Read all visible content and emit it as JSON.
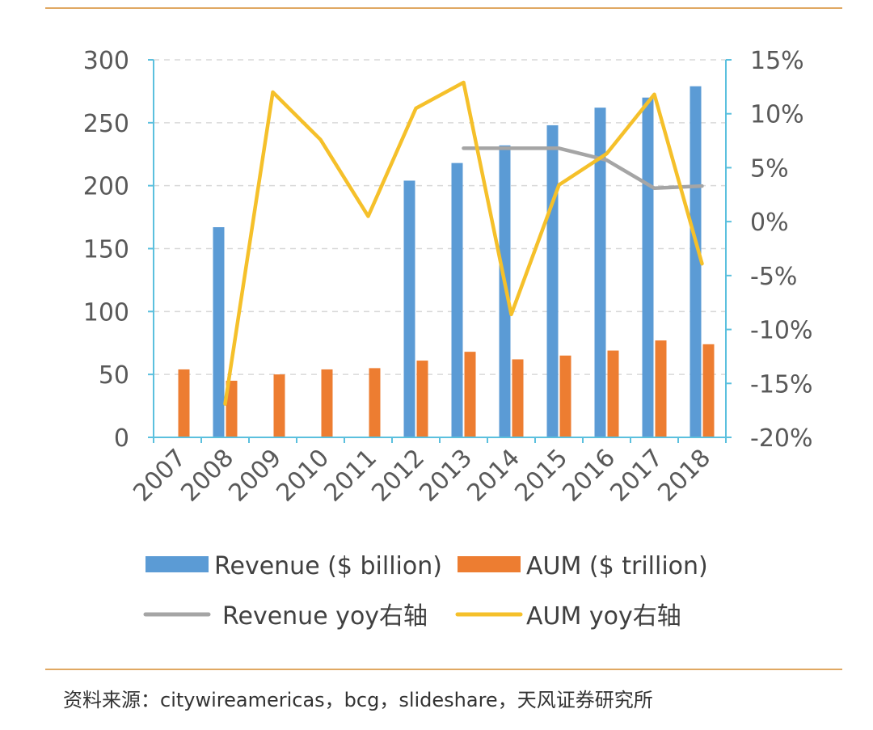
{
  "chart_data": {
    "type": "bar",
    "categories": [
      "2007",
      "2008",
      "2009",
      "2010",
      "2011",
      "2012",
      "2013",
      "2014",
      "2015",
      "2016",
      "2017",
      "2018"
    ],
    "series": [
      {
        "name": "Revenue ($ billion)",
        "kind": "bar",
        "axis": "left",
        "color": "#5b9bd5",
        "values": [
          null,
          167,
          null,
          null,
          null,
          204,
          218,
          232,
          248,
          262,
          270,
          279
        ]
      },
      {
        "name": "AUM ($ trillion)",
        "kind": "bar",
        "axis": "left",
        "color": "#ed7d31",
        "values": [
          54,
          45,
          50,
          54,
          55,
          61,
          68,
          62,
          65,
          69,
          77,
          74
        ]
      },
      {
        "name": "Revenue yoy右轴",
        "kind": "line",
        "axis": "right",
        "color": "#a5a5a5",
        "values": [
          null,
          null,
          null,
          null,
          null,
          null,
          6.8,
          6.8,
          6.8,
          5.7,
          3.1,
          3.3
        ]
      },
      {
        "name": "AUM yoy右轴",
        "kind": "line",
        "axis": "right",
        "color": "#f5c02a",
        "values": [
          null,
          -16.9,
          12.0,
          7.6,
          0.5,
          10.5,
          12.9,
          -8.6,
          3.4,
          6.3,
          11.8,
          -3.9
        ]
      }
    ],
    "y_left": {
      "min": 0,
      "max": 300,
      "ticks": [
        "0",
        "50",
        "100",
        "150",
        "200",
        "250",
        "300"
      ]
    },
    "y_right": {
      "min": -20,
      "max": 15,
      "ticks": [
        "-20%",
        "-15%",
        "-10%",
        "-5%",
        "0%",
        "5%",
        "10%",
        "15%"
      ]
    },
    "grid": "horizontal dashed",
    "legend_position": "bottom"
  },
  "source": "资料来源：citywireamericas，bcg，slideshare，天风证券研究所"
}
